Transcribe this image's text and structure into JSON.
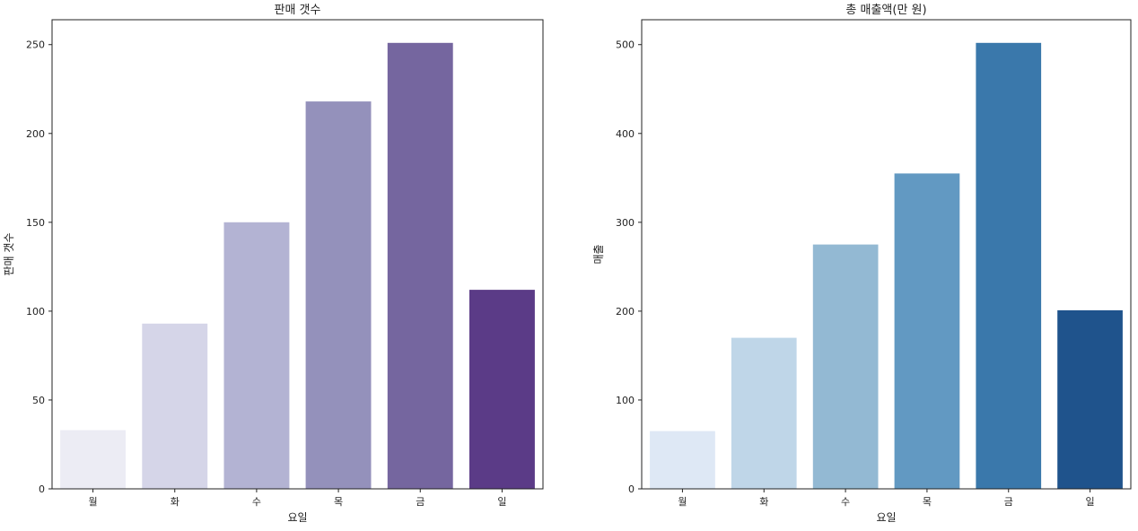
{
  "chart_data": [
    {
      "type": "bar",
      "title": "판매 갯수",
      "xlabel": "요일",
      "ylabel": "판매 갯수",
      "categories": [
        "월",
        "화",
        "수",
        "목",
        "금",
        "일"
      ],
      "values": [
        33,
        93,
        150,
        218,
        251,
        112
      ],
      "ylim": [
        0,
        264
      ],
      "yticks": [
        0,
        50,
        100,
        150,
        200,
        250
      ],
      "colors": [
        "#ececf4",
        "#d5d5e8",
        "#b3b3d3",
        "#9491bb",
        "#75669f",
        "#5b3b87"
      ],
      "grid": false
    },
    {
      "type": "bar",
      "title": "총 매출액(만 원)",
      "xlabel": "요일",
      "ylabel": "매출",
      "categories": [
        "월",
        "화",
        "수",
        "목",
        "금",
        "일"
      ],
      "values": [
        65,
        170,
        275,
        355,
        502,
        201
      ],
      "ylim": [
        0,
        528
      ],
      "yticks": [
        0,
        100,
        200,
        300,
        400,
        500
      ],
      "colors": [
        "#dee8f5",
        "#bfd6e8",
        "#93b9d3",
        "#6299c2",
        "#3a78ab",
        "#1f538c"
      ],
      "grid": false
    }
  ]
}
